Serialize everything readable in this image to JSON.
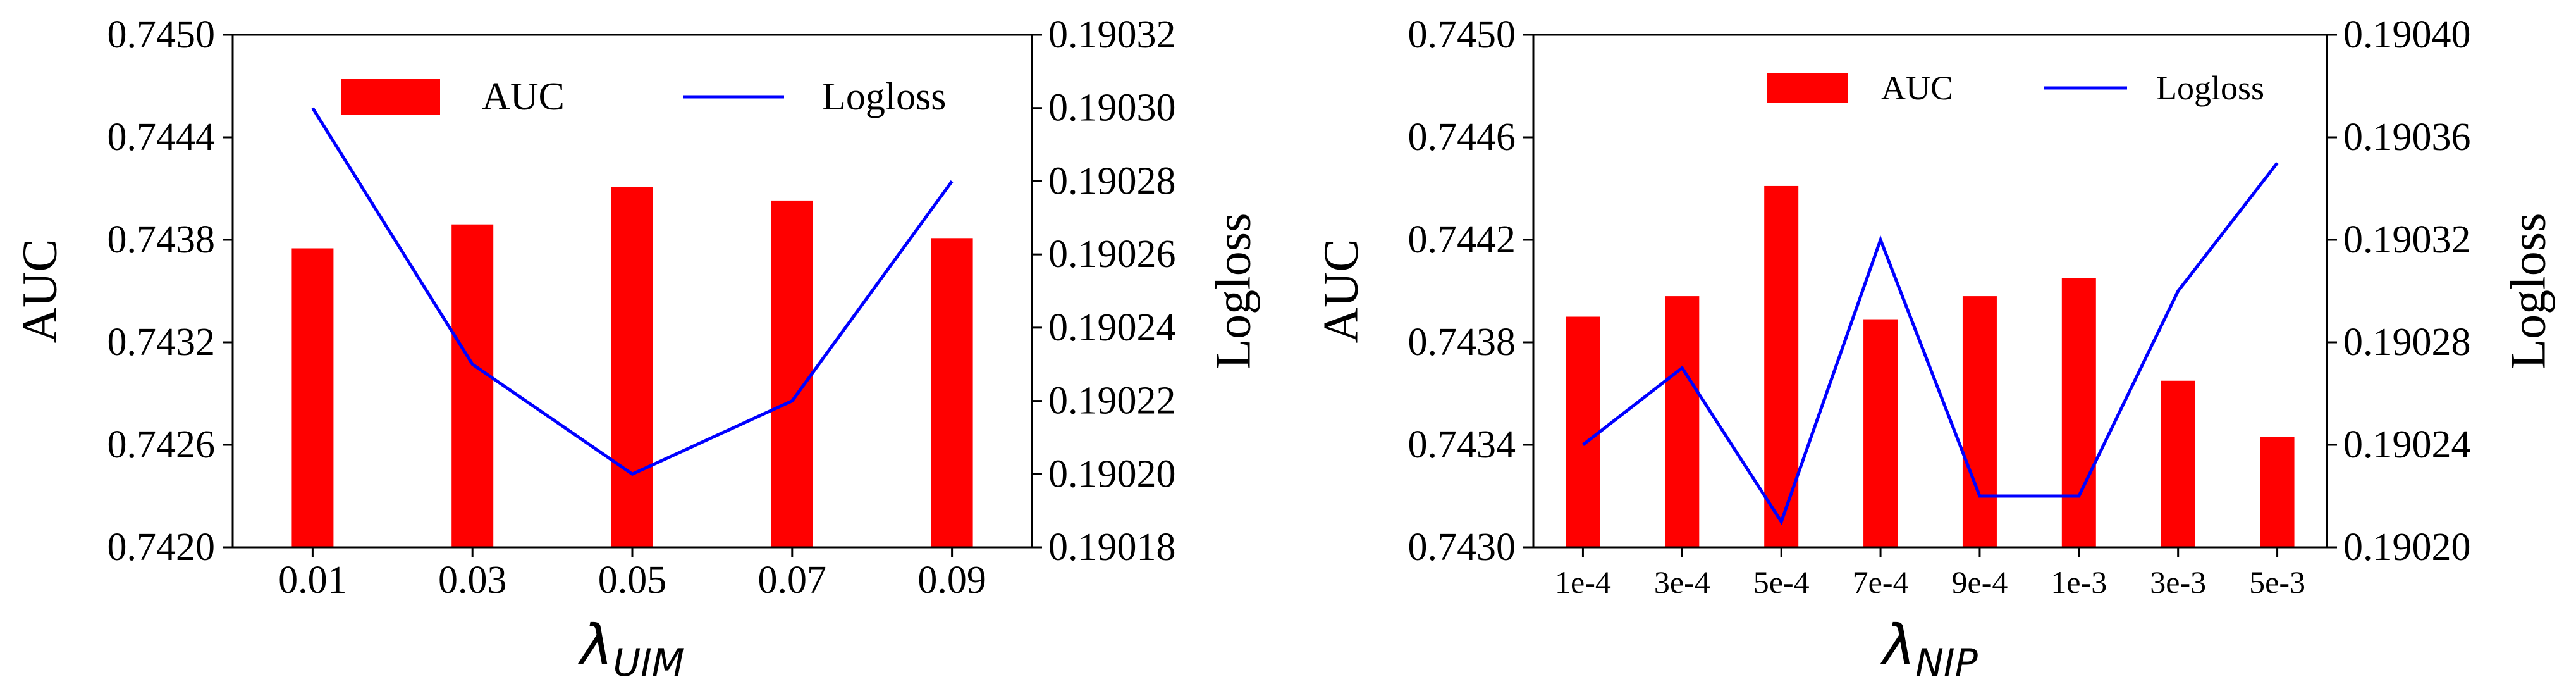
{
  "chart_data": [
    {
      "type": "bar",
      "combo": "bar+line",
      "categories": [
        "0.01",
        "0.03",
        "0.05",
        "0.07",
        "0.09"
      ],
      "series": [
        {
          "name": "AUC",
          "kind": "bar",
          "axis": "left",
          "color": "#ff0000",
          "values": [
            0.74375,
            0.74389,
            0.74411,
            0.74403,
            0.74381
          ]
        },
        {
          "name": "Logloss",
          "kind": "line",
          "axis": "right",
          "color": "#0000ff",
          "values": [
            0.1903,
            0.19023,
            0.1902,
            0.19022,
            0.19028
          ]
        }
      ],
      "xlabel": {
        "main": "λ",
        "sub": "UIM"
      },
      "ylabel": "AUC",
      "y2label": "Logloss",
      "ylim": [
        0.742,
        0.745
      ],
      "y2lim": [
        0.19018,
        0.19032
      ],
      "yticks": [
        "0.7420",
        "0.7426",
        "0.7432",
        "0.7438",
        "0.7444",
        "0.7450"
      ],
      "y2ticks": [
        "0.19018",
        "0.19020",
        "0.19022",
        "0.19024",
        "0.19026",
        "0.19028",
        "0.19030",
        "0.19032"
      ],
      "legend": "top, horizontal"
    },
    {
      "type": "bar",
      "combo": "bar+line",
      "categories": [
        "1e-4",
        "3e-4",
        "5e-4",
        "7e-4",
        "9e-4",
        "1e-3",
        "3e-3",
        "5e-3"
      ],
      "series": [
        {
          "name": "AUC",
          "kind": "bar",
          "axis": "left",
          "color": "#ff0000",
          "values": [
            0.7439,
            0.74398,
            0.74441,
            0.74389,
            0.74398,
            0.74405,
            0.74365,
            0.74343
          ]
        },
        {
          "name": "Logloss",
          "kind": "line",
          "axis": "right",
          "color": "#0000ff",
          "values": [
            0.19024,
            0.19027,
            0.19021,
            0.19032,
            0.19022,
            0.19022,
            0.1903,
            0.19035
          ]
        }
      ],
      "xlabel": {
        "main": "λ",
        "sub": "NIP"
      },
      "ylabel": "AUC",
      "y2label": "Logloss",
      "ylim": [
        0.743,
        0.745
      ],
      "y2lim": [
        0.1902,
        0.1904
      ],
      "yticks": [
        "0.7430",
        "0.7434",
        "0.7438",
        "0.7442",
        "0.7446",
        "0.7450"
      ],
      "y2ticks": [
        "0.19020",
        "0.19024",
        "0.19028",
        "0.19032",
        "0.19036",
        "0.19040"
      ],
      "legend": "top, horizontal"
    }
  ]
}
